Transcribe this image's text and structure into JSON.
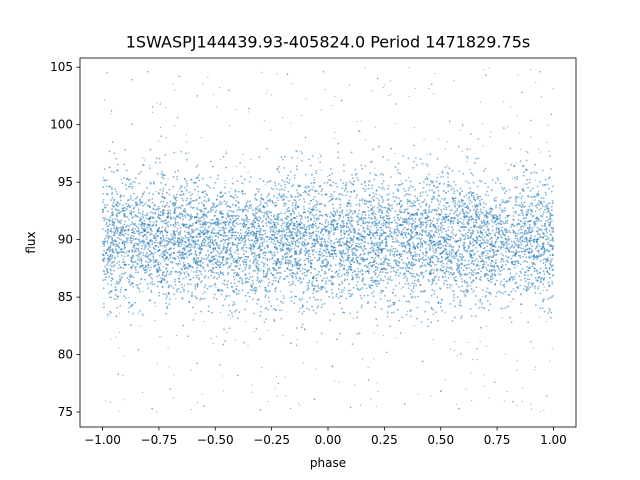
{
  "chart_data": {
    "type": "scatter",
    "title": "1SWASPJ144439.93-405824.0 Period 1471829.75s",
    "xlabel": "phase",
    "ylabel": "flux",
    "xlim": [
      -1.1,
      1.1
    ],
    "ylim": [
      73.7,
      105.8
    ],
    "x_ticks": [
      -1.0,
      -0.75,
      -0.5,
      -0.25,
      0.0,
      0.25,
      0.5,
      0.75,
      1.0
    ],
    "x_tick_labels": [
      "−1.00",
      "−0.75",
      "−0.50",
      "−0.25",
      "0.00",
      "0.25",
      "0.50",
      "0.75",
      "1.00"
    ],
    "y_ticks": [
      75,
      80,
      85,
      90,
      95,
      100,
      105
    ],
    "y_tick_labels": [
      "75",
      "80",
      "85",
      "90",
      "95",
      "100",
      "105"
    ],
    "grid": false,
    "legend": "none",
    "marker_color": "#1f77b4",
    "series": [
      {
        "x_range": [
          -1.0,
          1.0
        ],
        "core_flux_range": [
          85,
          95
        ],
        "mean_flux": 90,
        "outlier_flux_range": [
          75,
          105
        ],
        "points": [
          [
            -0.98,
            104.5
          ],
          [
            -0.96,
            101.2
          ],
          [
            -0.93,
            78.3
          ],
          [
            -0.9,
            97.8
          ],
          [
            -0.87,
            103.9
          ],
          [
            -0.84,
            80.4
          ],
          [
            -0.8,
            104.6
          ],
          [
            -0.78,
            75.3
          ],
          [
            -0.74,
            99.0
          ],
          [
            -0.7,
            77.0
          ],
          [
            -0.66,
            104.2
          ],
          [
            -0.62,
            81.6
          ],
          [
            -0.58,
            102.5
          ],
          [
            -0.55,
            75.5
          ],
          [
            -0.52,
            96.8
          ],
          [
            -0.48,
            79.1
          ],
          [
            -0.44,
            103.0
          ],
          [
            -0.4,
            78.2
          ],
          [
            -0.35,
            101.4
          ],
          [
            -0.3,
            75.2
          ],
          [
            -0.27,
            97.9
          ],
          [
            -0.22,
            77.5
          ],
          [
            -0.18,
            104.4
          ],
          [
            -0.14,
            80.8
          ],
          [
            -0.1,
            98.9
          ],
          [
            -0.06,
            76.1
          ],
          [
            -0.02,
            104.6
          ],
          [
            0.02,
            79.0
          ],
          [
            0.06,
            102.1
          ],
          [
            0.1,
            75.4
          ],
          [
            0.14,
            99.4
          ],
          [
            0.18,
            77.8
          ],
          [
            0.22,
            104.0
          ],
          [
            0.26,
            80.2
          ],
          [
            0.3,
            101.8
          ],
          [
            0.34,
            75.7
          ],
          [
            0.38,
            98.2
          ],
          [
            0.42,
            79.4
          ],
          [
            0.46,
            103.5
          ],
          [
            0.5,
            76.8
          ],
          [
            0.54,
            100.3
          ],
          [
            0.58,
            75.3
          ],
          [
            0.62,
            97.1
          ],
          [
            0.66,
            80.5
          ],
          [
            0.7,
            104.3
          ],
          [
            0.74,
            77.6
          ],
          [
            0.78,
            99.7
          ],
          [
            0.82,
            75.9
          ],
          [
            0.86,
            102.8
          ],
          [
            0.9,
            81.1
          ],
          [
            0.94,
            104.6
          ],
          [
            0.97,
            76.4
          ],
          [
            0.99,
            100.9
          ]
        ]
      }
    ]
  }
}
